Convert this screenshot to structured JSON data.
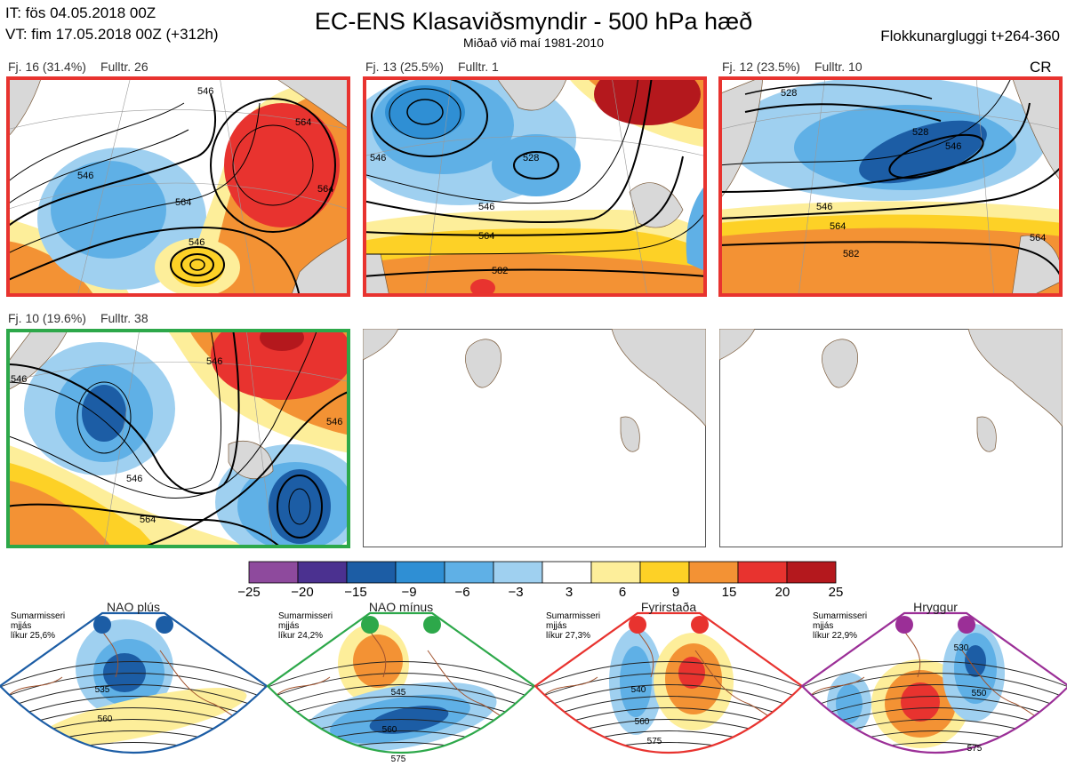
{
  "header": {
    "issue_time": "IT: fös 04.05.2018 00Z",
    "valid_time": "VT: fim 17.05.2018 00Z  (+312h)",
    "title": "EC-ENS Klasaviðsmyndir - 500 hPa hæð",
    "subtitle": "Miðað við maí 1981-2010",
    "window": "Flokkunargluggi t+264-360",
    "cr": "CR"
  },
  "panels": [
    {
      "cluster": "Fj. 16 (31.4%)",
      "rep": "Fulltr. 26",
      "border": "#e8332f",
      "contours": [
        "546",
        "546",
        "564",
        "546",
        "564",
        "564"
      ]
    },
    {
      "cluster": "Fj. 13 (25.5%)",
      "rep": "Fulltr. 1",
      "border": "#e8332f",
      "contours": [
        "528",
        "546",
        "564",
        "582",
        "546"
      ]
    },
    {
      "cluster": "Fj. 12 (23.5%)",
      "rep": "Fulltr. 10",
      "border": "#e8332f",
      "contours": [
        "528",
        "528",
        "546",
        "546",
        "564",
        "582",
        "564"
      ]
    },
    {
      "cluster": "Fj. 10 (19.6%)",
      "rep": "Fulltr. 38",
      "border": "#2da84a",
      "contours": [
        "546",
        "546",
        "546",
        "564",
        "546"
      ]
    },
    {
      "cluster": "",
      "rep": "",
      "border": "",
      "contours": []
    },
    {
      "cluster": "",
      "rep": "",
      "border": "",
      "contours": []
    }
  ],
  "chart_data": {
    "type": "heatmap",
    "colorbar": {
      "ticks": [
        "−25",
        "−20",
        "−15",
        "−9",
        "−6",
        "−3",
        "3",
        "6",
        "9",
        "15",
        "20",
        "25"
      ],
      "colors": [
        "#8e4a9d",
        "#4b3190",
        "#1c5da5",
        "#2f8fd4",
        "#5fb0e6",
        "#9fd0f0",
        "#ffffff",
        "#fdee9a",
        "#fdd126",
        "#f39234",
        "#e8332f",
        "#b4181d"
      ]
    },
    "regimes": [
      {
        "name": "NAO plús",
        "season": "Sumarmisseri",
        "smoothing": "mjjás",
        "probability": "líkur 25,6%",
        "color": "#1c5da5",
        "contours": [
          "535",
          "560"
        ]
      },
      {
        "name": "NAO mínus",
        "season": "Sumarmisseri",
        "smoothing": "mjjás",
        "probability": "líkur 24,2%",
        "color": "#2da84a",
        "contours": [
          "545",
          "560",
          "575"
        ]
      },
      {
        "name": "Fyrirstaða",
        "season": "Sumarmisseri",
        "smoothing": "mjjás",
        "probability": "líkur 27,3%",
        "color": "#e8332f",
        "contours": [
          "540",
          "560",
          "575"
        ]
      },
      {
        "name": "Hryggur",
        "season": "Sumarmisseri",
        "smoothing": "mjjás",
        "probability": "líkur 22,9%",
        "color": "#9b2f97",
        "contours": [
          "530",
          "550",
          "575"
        ]
      }
    ]
  }
}
